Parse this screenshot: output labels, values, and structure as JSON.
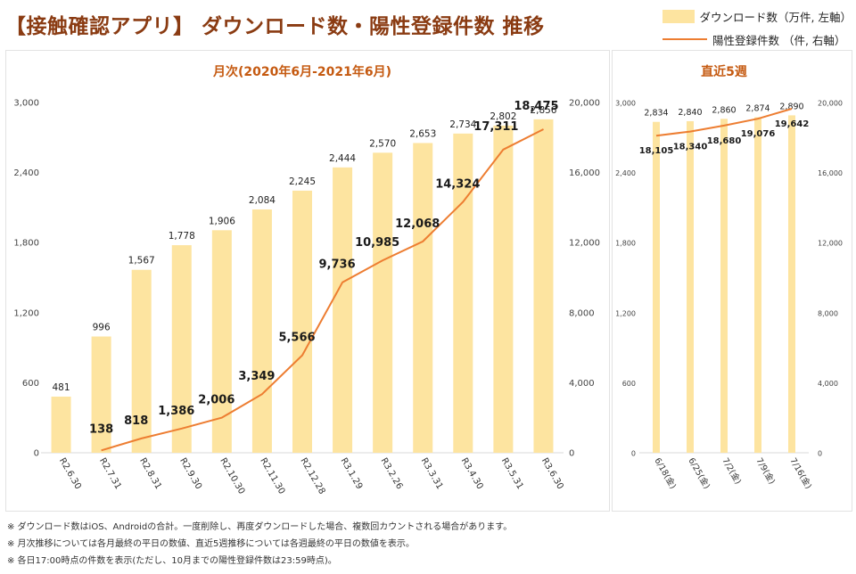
{
  "title": "【接触確認アプリ】 ダウンロード数・陽性登録件数 推移",
  "legend": {
    "downloads": "ダウンロード数（万件, 左軸）",
    "positives": "陽性登録件数 （件, 右軸）"
  },
  "colors": {
    "bar": "#fde4a0",
    "line": "#ed7d31",
    "panel_title": "#c55a11"
  },
  "chart_data": [
    {
      "type": "bar",
      "title": "月次(2020年6月-2021年6月)",
      "categories": [
        "R2.6.30",
        "R2.7.31",
        "R2.8.31",
        "R2.9.30",
        "R2.10.30",
        "R2.11.30",
        "R2.12.28",
        "R3.1.29",
        "R3.2.26",
        "R3.3.31",
        "R3.4.30",
        "R3.5.31",
        "R3.6.30"
      ],
      "series": [
        {
          "name": "ダウンロード数（万件, 左軸）",
          "type": "bar",
          "axis": "left",
          "values": [
            481,
            996,
            1567,
            1778,
            1906,
            2084,
            2245,
            2444,
            2570,
            2653,
            2734,
            2802,
            2856
          ],
          "labels": [
            "481",
            "996",
            "1,567",
            "1,778",
            "1,906",
            "2,084",
            "2,245",
            "2,444",
            "2,570",
            "2,653",
            "2,734",
            "2,802",
            "2,856"
          ]
        },
        {
          "name": "陽性登録件数 （件, 右軸）",
          "type": "line",
          "axis": "right",
          "values": [
            null,
            138,
            818,
            1386,
            2006,
            3349,
            5566,
            9736,
            10985,
            12068,
            14324,
            17311,
            18475
          ],
          "labels": [
            "",
            "138",
            "818",
            "1,386",
            "2,006",
            "3,349",
            "5,566",
            "9,736",
            "10,985",
            "12,068",
            "14,324",
            "17,311",
            "18,475"
          ]
        }
      ],
      "y_left": {
        "range": [
          0,
          3000
        ],
        "ticks": [
          "0",
          "600",
          "1,200",
          "1,800",
          "2,400",
          "3,000"
        ]
      },
      "y_right": {
        "range": [
          0,
          20000
        ],
        "ticks": [
          "0",
          "4,000",
          "8,000",
          "12,000",
          "16,000",
          "20,000"
        ]
      },
      "grid": false
    },
    {
      "type": "bar",
      "title": "直近5週",
      "categories": [
        "6/18(金)",
        "6/25(金)",
        "7/2(金)",
        "7/9(金)",
        "7/16(金)"
      ],
      "series": [
        {
          "name": "ダウンロード数（万件, 左軸）",
          "type": "bar",
          "axis": "left",
          "values": [
            2834,
            2840,
            2860,
            2874,
            2890
          ],
          "labels": [
            "2,834",
            "2,840",
            "2,860",
            "2,874",
            "2,890"
          ]
        },
        {
          "name": "陽性登録件数 （件, 右軸）",
          "type": "line",
          "axis": "right",
          "values": [
            18105,
            18340,
            18680,
            19076,
            19642
          ],
          "labels": [
            "18,105",
            "18,340",
            "18,680",
            "19,076",
            "19,642"
          ]
        }
      ],
      "y_left": {
        "range": [
          0,
          3000
        ],
        "ticks": [
          "0",
          "600",
          "1,200",
          "1,800",
          "2,400",
          "3,000"
        ]
      },
      "y_right": {
        "range": [
          0,
          20000
        ],
        "ticks": [
          "0",
          "4,000",
          "8,000",
          "12,000",
          "16,000",
          "20,000"
        ]
      },
      "grid": false
    }
  ],
  "footnotes": [
    "※ ダウンロード数はiOS、Androidの合計。一度削除し、再度ダウンロードした場合、複数回カウントされる場合があります。",
    "※ 月次推移については各月最終の平日の数値、直近5週推移については各週最終の平日の数値を表示。",
    "※ 各日17:00時点の件数を表示(ただし、10月までの陽性登録件数は23:59時点)。"
  ]
}
